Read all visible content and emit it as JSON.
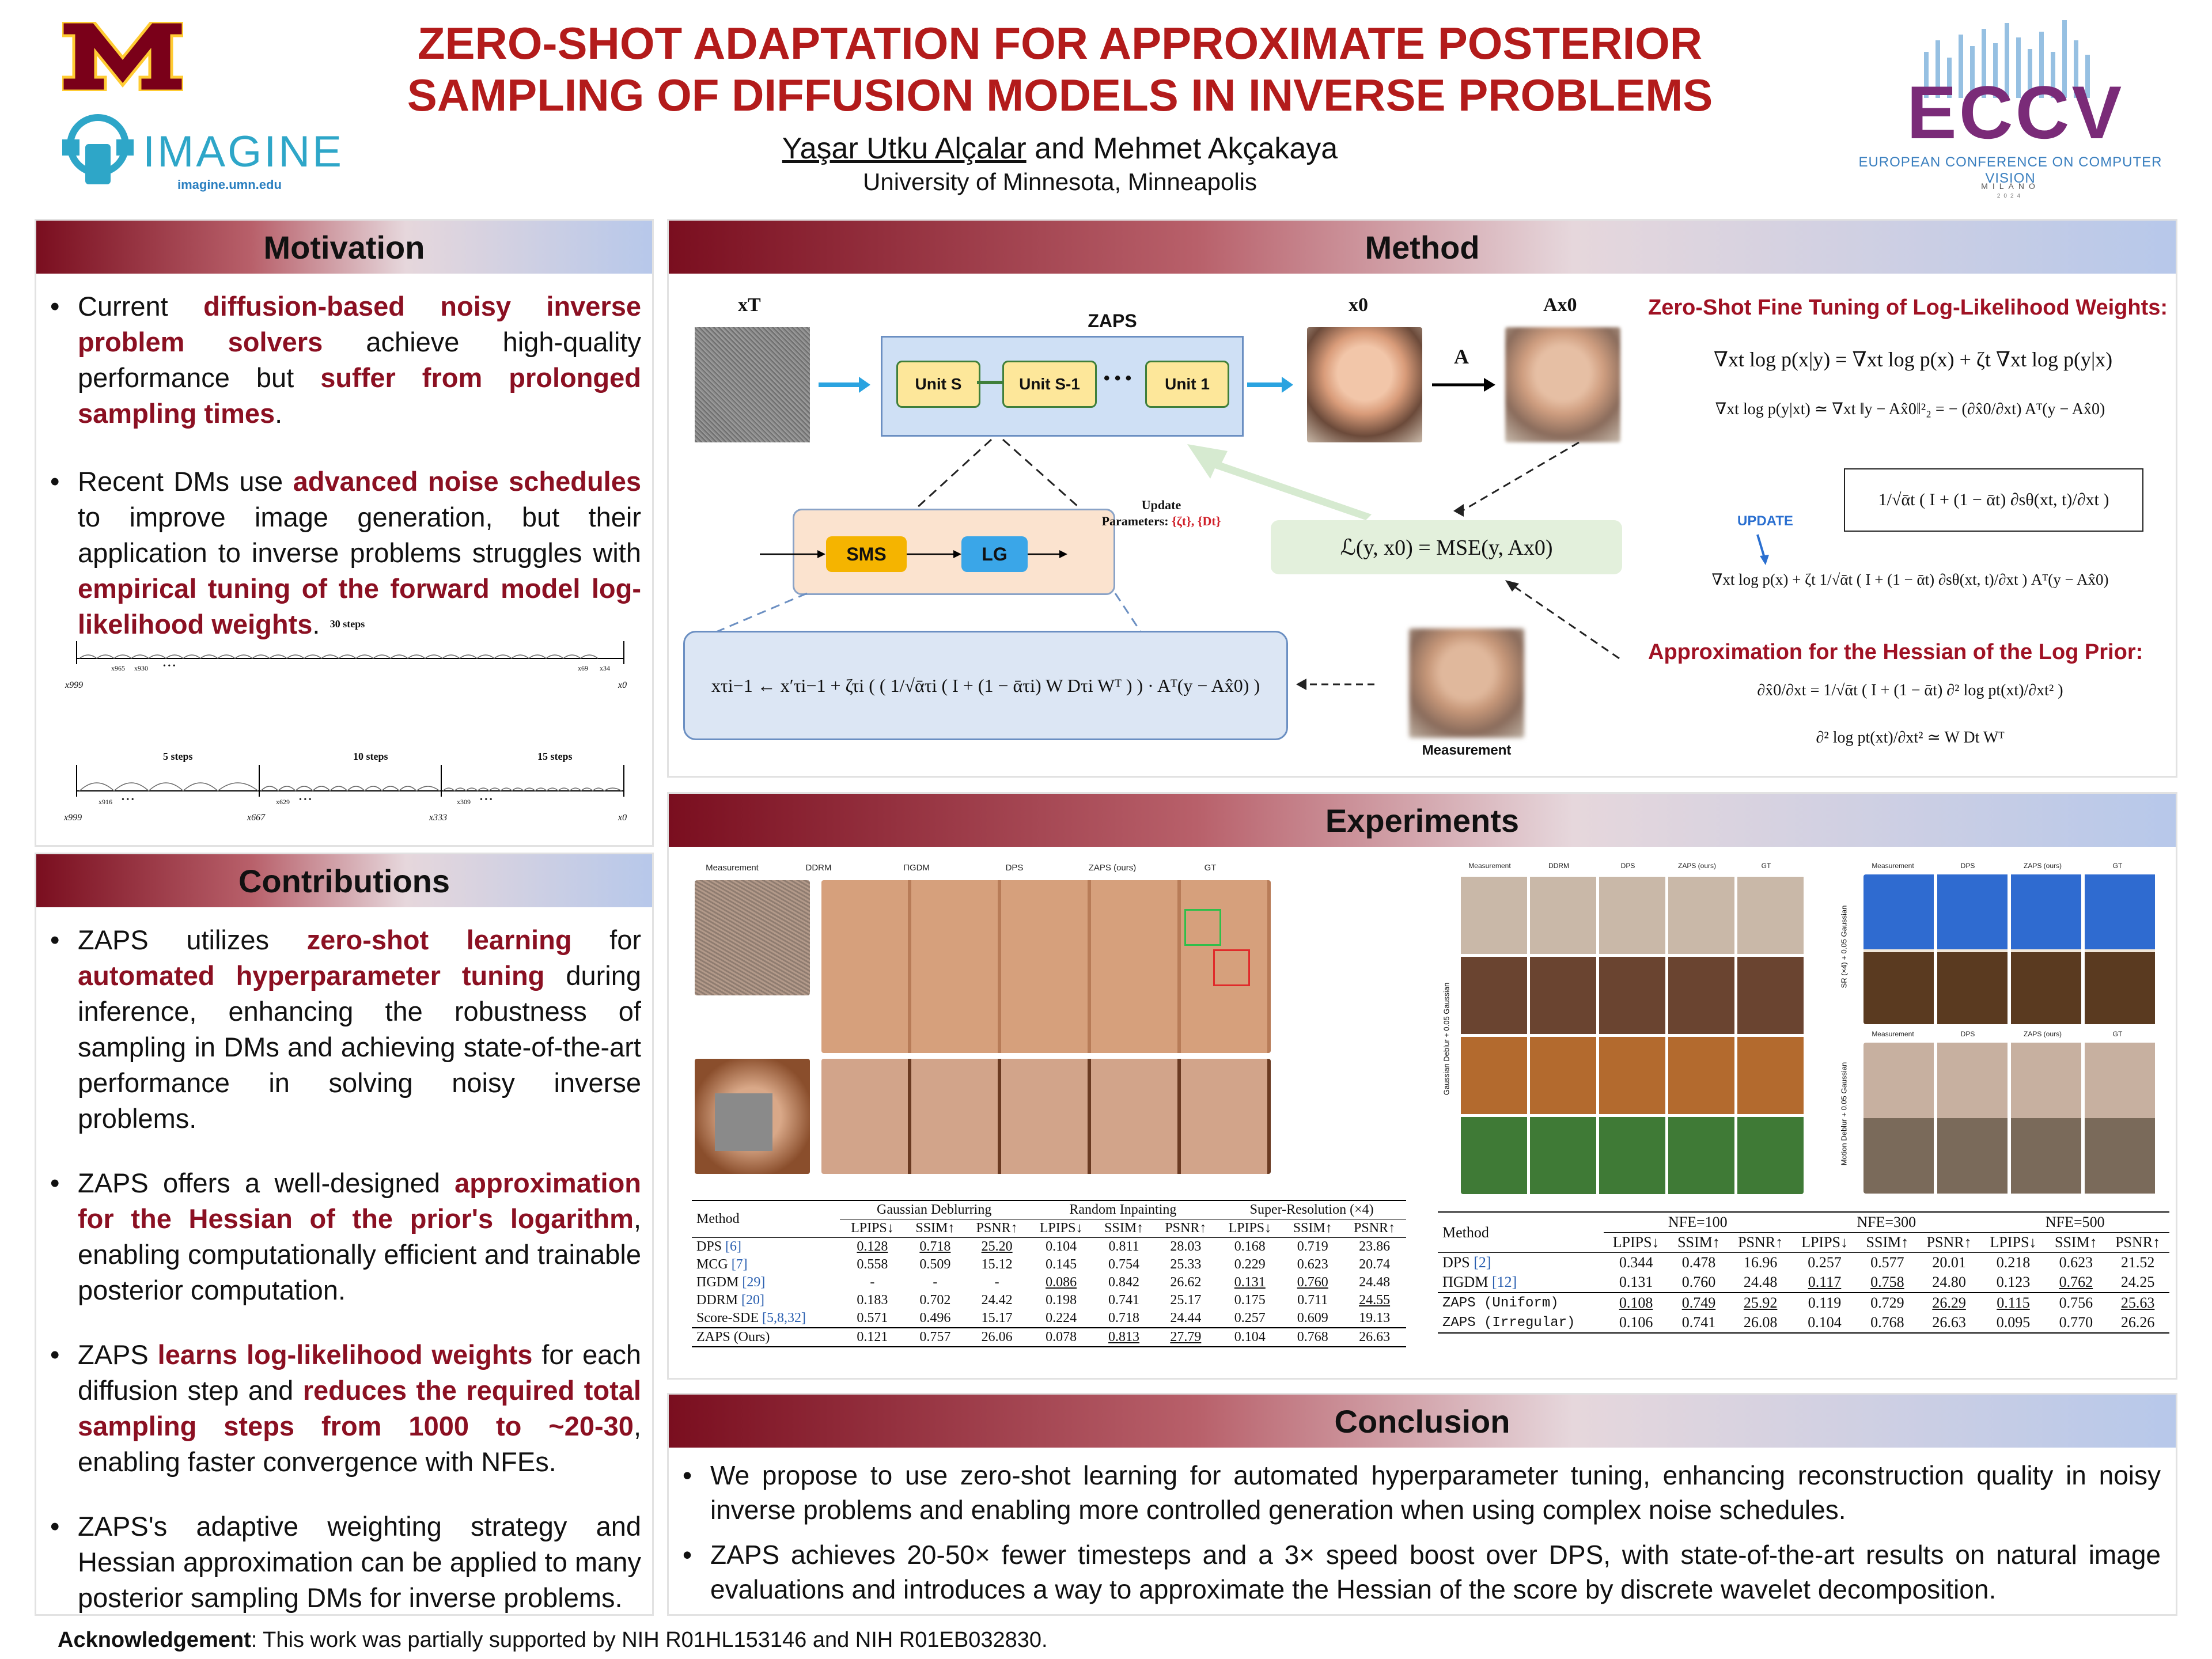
{
  "header": {
    "title_line1": "ZERO-SHOT ADAPTATION FOR APPROXIMATE POSTERIOR",
    "title_line2": "SAMPLING OF DIFFUSION MODELS IN INVERSE PROBLEMS",
    "author1": "Yaşar Utku Alçalar",
    "author_sep": " and Mehmet Akçakaya",
    "affiliation": "University of Minnesota, Minneapolis",
    "imagine_text": "IMAGINE",
    "imagine_url": "imagine.umn.edu",
    "eccv_text": "ECCV",
    "eccv_full": "EUROPEAN CONFERENCE ON COMPUTER VISION",
    "eccv_city": "MILANO",
    "eccv_year": "2024"
  },
  "motivation": {
    "title": "Motivation",
    "b1": {
      "t1": "Current ",
      "h1": "diffusion-based noisy inverse problem solvers",
      "t2": " achieve high-quality performance but ",
      "h2": "suffer from prolonged sampling times",
      "t3": "."
    },
    "b2": {
      "t1": "Recent DMs use ",
      "h1": "advanced noise schedules",
      "t2": " to improve image generation, but their application to inverse problems struggles with ",
      "h2": "empirical tuning of the forward model log-likelihood weights",
      "t3": "."
    },
    "sched1": {
      "label": "30 steps",
      "left": "x999",
      "right": "x0",
      "l2": "x965",
      "l3": "x930",
      "r2": "x69",
      "r3": "x34",
      "dots": "• • •"
    },
    "sched2": {
      "labels": [
        "5 steps",
        "10 steps",
        "15 steps"
      ],
      "ticks": [
        "x999",
        "x667",
        "x333",
        "x0"
      ],
      "inner": [
        "x916",
        "x629",
        "x309"
      ],
      "dots": "• • •"
    }
  },
  "contributions": {
    "title": "Contributions",
    "b1": {
      "t1": "ZAPS utilizes ",
      "h1": "zero-shot learning",
      "t2": " for ",
      "h2": "automated hyperparameter tuning",
      "t3": " during inference, enhancing the robustness of sampling in DMs and achieving state-of-the-art performance in solving noisy inverse problems."
    },
    "b2": {
      "t1": "ZAPS offers a well-designed ",
      "h1": "approximation for the Hessian of the prior's logarithm",
      "t2": ", enabling computationally efficient and trainable posterior computation."
    },
    "b3": {
      "t1": "ZAPS ",
      "h1": "learns log-likelihood weights",
      "t2": " for each diffusion step and ",
      "h2": "reduces the required total sampling steps from 1000 to ~20-30",
      "t3": ", enabling faster convergence with NFEs."
    },
    "b4": {
      "t1": "ZAPS's adaptive weighting strategy and Hessian approximation can be applied to many posterior sampling DMs for inverse problems."
    }
  },
  "method": {
    "title": "Method",
    "xT": "xT",
    "zaps": "ZAPS",
    "unit_s": "Unit S",
    "unit_s1": "Unit S-1",
    "unit_1": "Unit 1",
    "dots": "• • •",
    "x0": "x0",
    "A": "A",
    "Ax0": "Ax0",
    "sms": "SMS",
    "lg": "LG",
    "update_label": "Update",
    "update_params": "Parameters:",
    "update_vals": "{ζt}, {Dt}",
    "loss": "ℒ(y, x0) = MSE(y, Ax0)",
    "update_formula": "xτi−1 ← x′τi−1 + ζτi ( ( 1/√ᾱτi ( I + (1 − ᾱτi) W Dτi Wᵀ ) ) · Aᵀ(y − Ax̂0) )",
    "measurement": "Measurement",
    "ft_title": "Zero-Shot Fine Tuning of Log-Likelihood Weights:",
    "eq1": "∇xt log p(x|y) = ∇xt log p(x) + ζt ∇xt log p(y|x)",
    "eq2": "∇xt log p(y|xt) ≃ ∇xt ‖y − Ax̂0‖²₂ = − (∂x̂0/∂xt) Aᵀ(y − Ax̂0)",
    "eq3": "1/√ᾱt ( I + (1 − ᾱt) ∂sθ(xt, t)/∂xt )",
    "update_tag": "UPDATE",
    "eq4": "∇xt log p(x) + ζt 1/√ᾱt ( I + (1 − ᾱt) ∂sθ(xt, t)/∂xt ) Aᵀ(y − Ax̂0)",
    "hess_title": "Approximation for the Hessian of the Log Prior:",
    "eq5": "∂x̂0/∂xt = 1/√ᾱt ( I + (1 − ᾱt) ∂² log pt(xt)/∂xt² )",
    "eq6": "∂² log pt(xt)/∂xt² ≃ W Dt Wᵀ"
  },
  "experiments": {
    "title": "Experiments",
    "fig1_cols": [
      "Measurement",
      "DDRM",
      "ΠGDM",
      "DPS",
      "ZAPS (ours)",
      "GT"
    ],
    "fig2_cols": [
      "Measurement",
      "DDRM",
      "DPS",
      "ZAPS (ours)",
      "GT"
    ],
    "fig3_cols": [
      "Measurement",
      "DPS",
      "ZAPS (ours)",
      "GT"
    ],
    "fig4_cols": [
      "Measurement",
      "DPS",
      "ZAPS (ours)",
      "GT"
    ],
    "fig2_rowlabel": "Gaussian Deblur + 0.05 Gaussian",
    "fig3_rowlabel": "SR (×4) + 0.05 Gaussian",
    "fig4_rowlabel": "Motion Deblur + 0.05 Gaussian",
    "table1": {
      "groups": [
        "Gaussian Deblurring",
        "Random Inpainting",
        "Super-Resolution (×4)"
      ],
      "method_hdr": "Method",
      "metrics": [
        "LPIPS↓",
        "SSIM↑",
        "PSNR↑",
        "LPIPS↓",
        "SSIM↑",
        "PSNR↑",
        "LPIPS↓",
        "SSIM↑",
        "PSNR↑"
      ],
      "rows": [
        {
          "name": "DPS",
          "ref": "[6]",
          "vals": [
            "0.128",
            "0.718",
            "25.20",
            "0.104",
            "0.811",
            "28.03",
            "0.168",
            "0.719",
            "23.86"
          ]
        },
        {
          "name": "MCG",
          "ref": "[7]",
          "vals": [
            "0.558",
            "0.509",
            "15.12",
            "0.145",
            "0.754",
            "25.33",
            "0.229",
            "0.623",
            "20.74"
          ]
        },
        {
          "name": "ΠGDM",
          "ref": "[29]",
          "vals": [
            "-",
            "-",
            "-",
            "0.086",
            "0.842",
            "26.62",
            "0.131",
            "0.760",
            "24.48"
          ]
        },
        {
          "name": "DDRM",
          "ref": "[20]",
          "vals": [
            "0.183",
            "0.702",
            "24.42",
            "0.198",
            "0.741",
            "25.17",
            "0.175",
            "0.711",
            "24.55"
          ]
        },
        {
          "name": "Score-SDE",
          "ref": "[5,8,32]",
          "vals": [
            "0.571",
            "0.496",
            "15.17",
            "0.224",
            "0.718",
            "24.44",
            "0.257",
            "0.609",
            "19.13"
          ]
        }
      ],
      "ours": {
        "name": "ZAPS (Ours)",
        "vals": [
          "0.121",
          "0.757",
          "26.06",
          "0.078",
          "0.813",
          "27.79",
          "0.104",
          "0.768",
          "26.63"
        ]
      }
    },
    "table2": {
      "groups": [
        "NFE=100",
        "NFE=300",
        "NFE=500"
      ],
      "method_hdr": "Method",
      "metrics": [
        "LPIPS↓",
        "SSIM↑",
        "PSNR↑",
        "LPIPS↓",
        "SSIM↑",
        "PSNR↑",
        "LPIPS↓",
        "SSIM↑",
        "PSNR↑"
      ],
      "rows": [
        {
          "name": "DPS",
          "ref": "[2]",
          "vals": [
            "0.344",
            "0.478",
            "16.96",
            "0.257",
            "0.577",
            "20.01",
            "0.218",
            "0.623",
            "21.52"
          ]
        },
        {
          "name": "ΠGDM",
          "ref": "[12]",
          "vals": [
            "0.131",
            "0.760",
            "24.48",
            "0.117",
            "0.758",
            "24.80",
            "0.123",
            "0.762",
            "24.25"
          ]
        }
      ],
      "ours": [
        {
          "name": "ZAPS (Uniform)",
          "vals": [
            "0.108",
            "0.749",
            "25.92",
            "0.119",
            "0.729",
            "26.29",
            "0.115",
            "0.756",
            "25.63"
          ]
        },
        {
          "name": "ZAPS (Irregular)",
          "vals": [
            "0.106",
            "0.741",
            "26.08",
            "0.104",
            "0.768",
            "26.63",
            "0.095",
            "0.770",
            "26.26"
          ]
        }
      ]
    }
  },
  "conclusion": {
    "title": "Conclusion",
    "b1": "We propose to use zero-shot learning for automated hyperparameter tuning, enhancing reconstruction quality in noisy inverse problems and enabling more controlled generation when using complex noise schedules.",
    "b2": "ZAPS achieves 20-50× fewer timesteps and a 3× speed boost over DPS, with state-of-the-art results on natural image evaluations and introduces a way to approximate the Hessian of the score by discrete wavelet decomposition."
  },
  "ack": {
    "label": "Acknowledgement",
    "text": ": This work was partially supported by NIH R01HL153146 and NIH R01EB032830."
  },
  "colors": {
    "maroon": "#7a0e1f",
    "title_red": "#b31b1b",
    "highlight": "#8b1022",
    "zaps_box": "#cfe0f5",
    "unit": "#fde79a",
    "sms": "#f5b400",
    "lg": "#3aa6e8",
    "loss_box": "#e3f0dc",
    "arrow": "#2aa3e0"
  }
}
